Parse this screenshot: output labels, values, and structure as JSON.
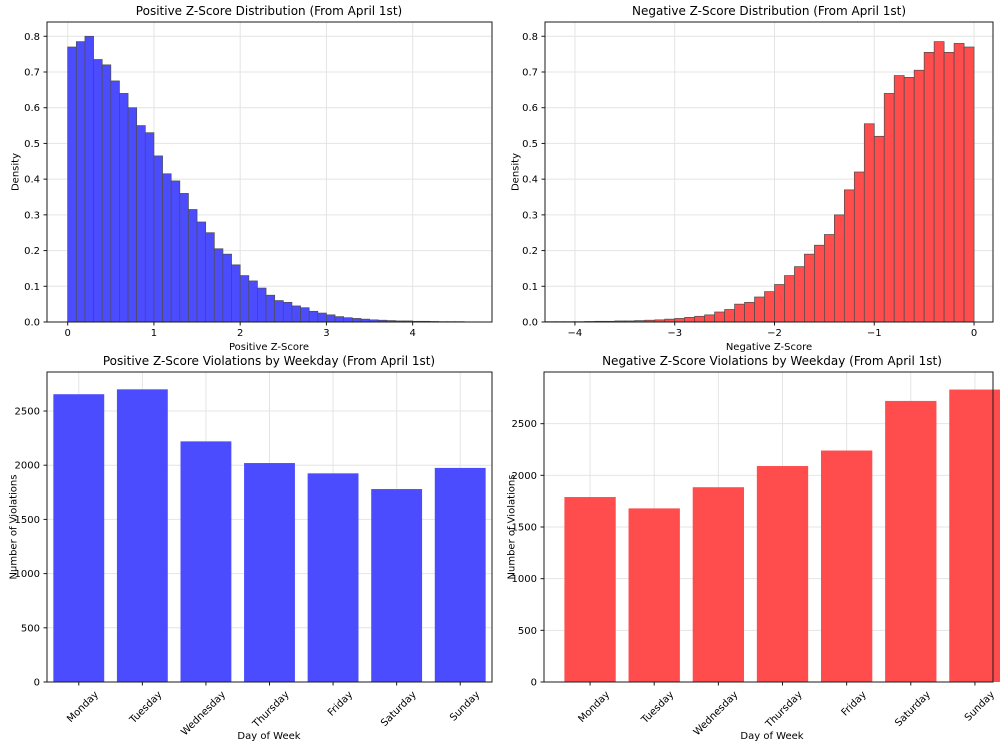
{
  "figure": {
    "background": "#ffffff"
  },
  "colors": {
    "positive_bar": "#4C4CFF",
    "negative_bar": "#FF4C4C",
    "bar_edge": "#4C4C4C",
    "grid": "#e4e4e4",
    "spine": "#1a1a1a",
    "text": "#000000"
  },
  "chart_data": [
    {
      "id": "positive-zscore-distribution",
      "type": "histogram",
      "title": "Positive Z-Score Distribution (From April 1st)",
      "xlabel": "Positive Z-Score",
      "ylabel": "Density",
      "bar_color": "#4C4CFF",
      "edge_color": "#4C4C4C",
      "grid": true,
      "legend_position": "none",
      "bin_start": 0.0,
      "bin_width": 0.1,
      "values": [
        0.77,
        0.785,
        0.8,
        0.735,
        0.72,
        0.675,
        0.64,
        0.6,
        0.55,
        0.53,
        0.465,
        0.415,
        0.395,
        0.36,
        0.315,
        0.28,
        0.25,
        0.205,
        0.19,
        0.16,
        0.13,
        0.115,
        0.095,
        0.075,
        0.06,
        0.055,
        0.045,
        0.04,
        0.03,
        0.025,
        0.02,
        0.015,
        0.012,
        0.01,
        0.008,
        0.006,
        0.005,
        0.004,
        0.003,
        0.003,
        0.002,
        0.002,
        0.0015,
        0.001,
        0.001,
        0.001,
        0.0005,
        0.0005
      ],
      "xlim": [
        -0.24,
        4.92
      ],
      "ylim": [
        0,
        0.84
      ],
      "x_ticks": [
        {
          "v": 0,
          "label": "0"
        },
        {
          "v": 1,
          "label": "1"
        },
        {
          "v": 2,
          "label": "2"
        },
        {
          "v": 3,
          "label": "3"
        },
        {
          "v": 4,
          "label": "4"
        }
      ],
      "y_ticks": [
        {
          "v": 0.0,
          "label": "0.0"
        },
        {
          "v": 0.1,
          "label": "0.1"
        },
        {
          "v": 0.2,
          "label": "0.2"
        },
        {
          "v": 0.3,
          "label": "0.3"
        },
        {
          "v": 0.4,
          "label": "0.4"
        },
        {
          "v": 0.5,
          "label": "0.5"
        },
        {
          "v": 0.6,
          "label": "0.6"
        },
        {
          "v": 0.7,
          "label": "0.7"
        },
        {
          "v": 0.8,
          "label": "0.8"
        }
      ]
    },
    {
      "id": "negative-zscore-distribution",
      "type": "histogram",
      "title": "Negative Z-Score Distribution (From April 1st)",
      "xlabel": "Negative Z-Score",
      "ylabel": "Density",
      "bar_color": "#FF4C4C",
      "edge_color": "#4C4C4C",
      "grid": true,
      "legend_position": "none",
      "bin_start": -4.3,
      "bin_width": 0.1,
      "values": [
        0.001,
        0.001,
        0.001,
        0.001,
        0.0015,
        0.002,
        0.002,
        0.003,
        0.003,
        0.004,
        0.005,
        0.006,
        0.008,
        0.01,
        0.013,
        0.016,
        0.02,
        0.028,
        0.035,
        0.05,
        0.055,
        0.07,
        0.085,
        0.105,
        0.13,
        0.155,
        0.19,
        0.215,
        0.245,
        0.3,
        0.37,
        0.42,
        0.555,
        0.52,
        0.64,
        0.69,
        0.685,
        0.705,
        0.755,
        0.785,
        0.755,
        0.78,
        0.77
      ],
      "xlim": [
        -4.3,
        0.19
      ],
      "ylim": [
        0,
        0.84
      ],
      "x_ticks": [
        {
          "v": -4,
          "label": "−4"
        },
        {
          "v": -3,
          "label": "−3"
        },
        {
          "v": -2,
          "label": "−2"
        },
        {
          "v": -1,
          "label": "−1"
        },
        {
          "v": 0,
          "label": "0"
        }
      ],
      "y_ticks": [
        {
          "v": 0.0,
          "label": "0.0"
        },
        {
          "v": 0.1,
          "label": "0.1"
        },
        {
          "v": 0.2,
          "label": "0.2"
        },
        {
          "v": 0.3,
          "label": "0.3"
        },
        {
          "v": 0.4,
          "label": "0.4"
        },
        {
          "v": 0.5,
          "label": "0.5"
        },
        {
          "v": 0.6,
          "label": "0.6"
        },
        {
          "v": 0.7,
          "label": "0.7"
        },
        {
          "v": 0.8,
          "label": "0.8"
        }
      ]
    },
    {
      "id": "positive-zscore-violations-by-weekday",
      "type": "bar",
      "title": "Positive Z-Score Violations by Weekday (From April 1st)",
      "xlabel": "Day of Week",
      "ylabel": "Number of Violations",
      "bar_color": "#4C4CFF",
      "grid": true,
      "legend_position": "none",
      "categories": [
        "Monday",
        "Tuesday",
        "Wednesday",
        "Thursday",
        "Friday",
        "Saturday",
        "Sunday"
      ],
      "values": [
        2655,
        2700,
        2220,
        2020,
        1925,
        1780,
        1975
      ],
      "bar_rel_width": 0.8,
      "ylim": [
        0,
        2860
      ],
      "y_ticks": [
        {
          "v": 0,
          "label": "0"
        },
        {
          "v": 500,
          "label": "500"
        },
        {
          "v": 1000,
          "label": "1000"
        },
        {
          "v": 1500,
          "label": "1500"
        },
        {
          "v": 2000,
          "label": "2000"
        },
        {
          "v": 2500,
          "label": "2500"
        }
      ]
    },
    {
      "id": "negative-zscore-violations-by-weekday",
      "type": "bar",
      "title": "Negative Z-Score Violations by Weekday (From April 1st)",
      "xlabel": "Day of Week",
      "ylabel": "Number of Violations",
      "bar_color": "#FF4C4C",
      "grid": true,
      "legend_position": "none",
      "categories": [
        "Monday",
        "Tuesday",
        "Wednesday",
        "Thursday",
        "Friday",
        "Saturday",
        "Sunday"
      ],
      "values": [
        1790,
        1680,
        1885,
        2090,
        2240,
        2720,
        2830
      ],
      "bar_rel_width": 0.8,
      "ylim": [
        0,
        3000
      ],
      "y_ticks": [
        {
          "v": 0,
          "label": "0"
        },
        {
          "v": 500,
          "label": "500"
        },
        {
          "v": 1000,
          "label": "1000"
        },
        {
          "v": 1500,
          "label": "1500"
        },
        {
          "v": 2000,
          "label": "2000"
        },
        {
          "v": 2500,
          "label": "2500"
        }
      ]
    }
  ]
}
